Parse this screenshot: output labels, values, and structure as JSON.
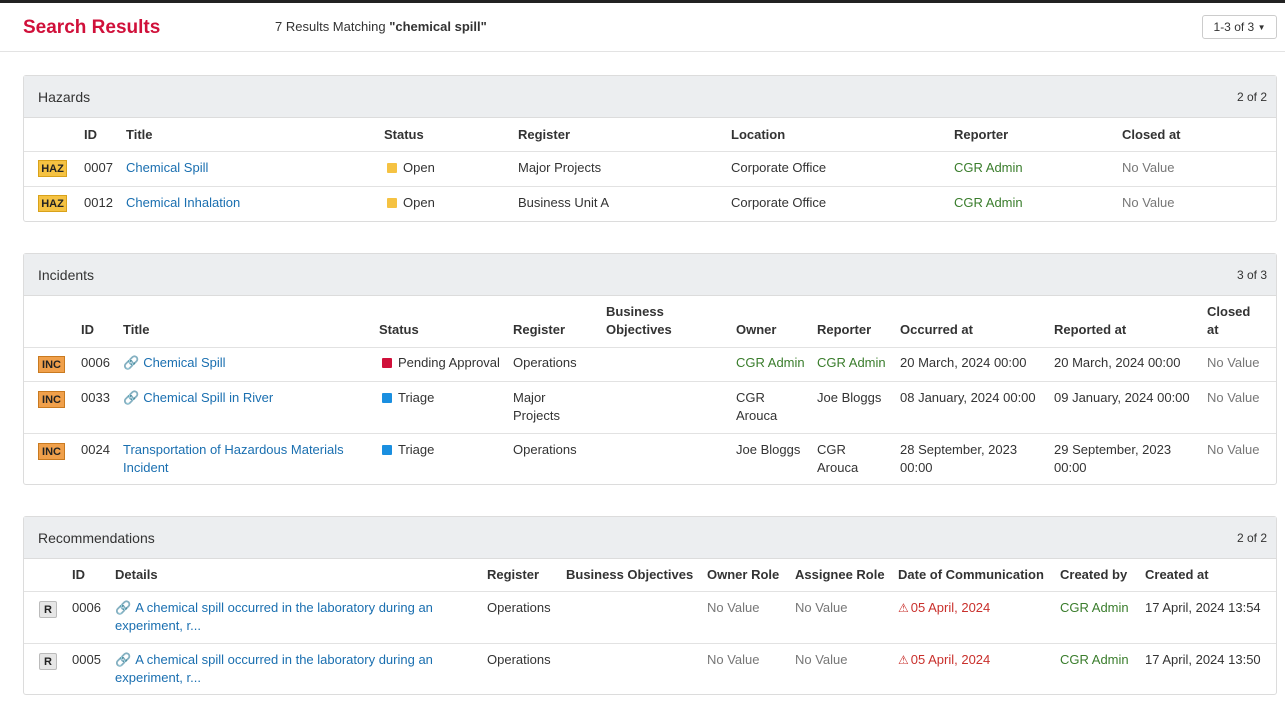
{
  "header": {
    "title": "Search Results",
    "summary_prefix": "7 Results Matching",
    "query": "\"chemical spill\"",
    "pager": "1-3 of 3"
  },
  "colors": {
    "title_red": "#d0103a",
    "link_blue": "#1a6fb0",
    "person_green": "#3a7d2c",
    "open_yellow": "#f5c242",
    "pending_crimson": "#d0103a",
    "triage_blue": "#1a8fe0",
    "warning_red": "#c9302c"
  },
  "hazards": {
    "title": "Hazards",
    "count": "2 of 2",
    "columns": [
      "ID",
      "Title",
      "Status",
      "Register",
      "Location",
      "Reporter",
      "Closed at"
    ],
    "rows": [
      {
        "tag": "HAZ",
        "id": "0007",
        "title": "Chemical Spill",
        "status": "Open",
        "register": "Major Projects",
        "location": "Corporate Office",
        "reporter": "CGR Admin",
        "closed": "No Value"
      },
      {
        "tag": "HAZ",
        "id": "0012",
        "title": "Chemical Inhalation",
        "status": "Open",
        "register": "Business Unit A",
        "location": "Corporate Office",
        "reporter": "CGR Admin",
        "closed": "No Value"
      }
    ]
  },
  "incidents": {
    "title": "Incidents",
    "count": "3 of 3",
    "columns": [
      "ID",
      "Title",
      "Status",
      "Register",
      "Business Objectives",
      "Owner",
      "Reporter",
      "Occurred at",
      "Reported at",
      "Closed at"
    ],
    "col_bo_1": "Business",
    "col_bo_2": "Objectives",
    "col_closed_1": "Closed",
    "col_closed_2": "at",
    "rows": [
      {
        "tag": "INC",
        "id": "0006",
        "title": "Chemical Spill",
        "title_2": "",
        "status": "Pending Approval",
        "register": "Operations",
        "register_2": "",
        "owner": "CGR Admin",
        "owner_2": "",
        "reporter": "CGR Admin",
        "reporter_2": "",
        "occurred": "20 March, 2024 00:00",
        "occurred_2": "",
        "reported": "20 March, 2024 00:00",
        "reported_2": "",
        "closed": "No Value"
      },
      {
        "tag": "INC",
        "id": "0033",
        "title": "Chemical Spill in River",
        "title_2": "",
        "status": "Triage",
        "register": "Major",
        "register_2": "Projects",
        "owner": "CGR",
        "owner_2": "Arouca",
        "reporter": "Joe Bloggs",
        "reporter_2": "",
        "occurred": "08 January, 2024 00:00",
        "occurred_2": "",
        "reported": "09 January, 2024 00:00",
        "reported_2": "",
        "closed": "No Value"
      },
      {
        "tag": "INC",
        "id": "0024",
        "title": "Transportation of Hazardous Materials",
        "title_2": "Incident",
        "status": "Triage",
        "register": "Operations",
        "register_2": "",
        "owner": "Joe Bloggs",
        "owner_2": "",
        "reporter": "CGR",
        "reporter_2": "Arouca",
        "occurred": "28 September, 2023",
        "occurred_2": "00:00",
        "reported": "29 September, 2023",
        "reported_2": "00:00",
        "closed": "No Value"
      }
    ]
  },
  "recommendations": {
    "title": "Recommendations",
    "count": "2 of 2",
    "columns": [
      "ID",
      "Details",
      "Register",
      "Business Objectives",
      "Owner Role",
      "Assignee Role",
      "Date of Communication",
      "Created by",
      "Created at"
    ],
    "rows": [
      {
        "tag": "R",
        "id": "0006",
        "details": "A chemical spill occurred in the laboratory during an",
        "details_2": "experiment, r...",
        "register": "Operations",
        "owner_role": "No Value",
        "assignee_role": "No Value",
        "date_comm": "05 April, 2024",
        "created_by": "CGR Admin",
        "created_at": "17 April, 2024 13:54"
      },
      {
        "tag": "R",
        "id": "0005",
        "details": "A chemical spill occurred in the laboratory during an",
        "details_2": "experiment, r...",
        "register": "Operations",
        "owner_role": "No Value",
        "assignee_role": "No Value",
        "date_comm": "05 April, 2024",
        "created_by": "CGR Admin",
        "created_at": "17 April, 2024 13:50"
      }
    ]
  }
}
